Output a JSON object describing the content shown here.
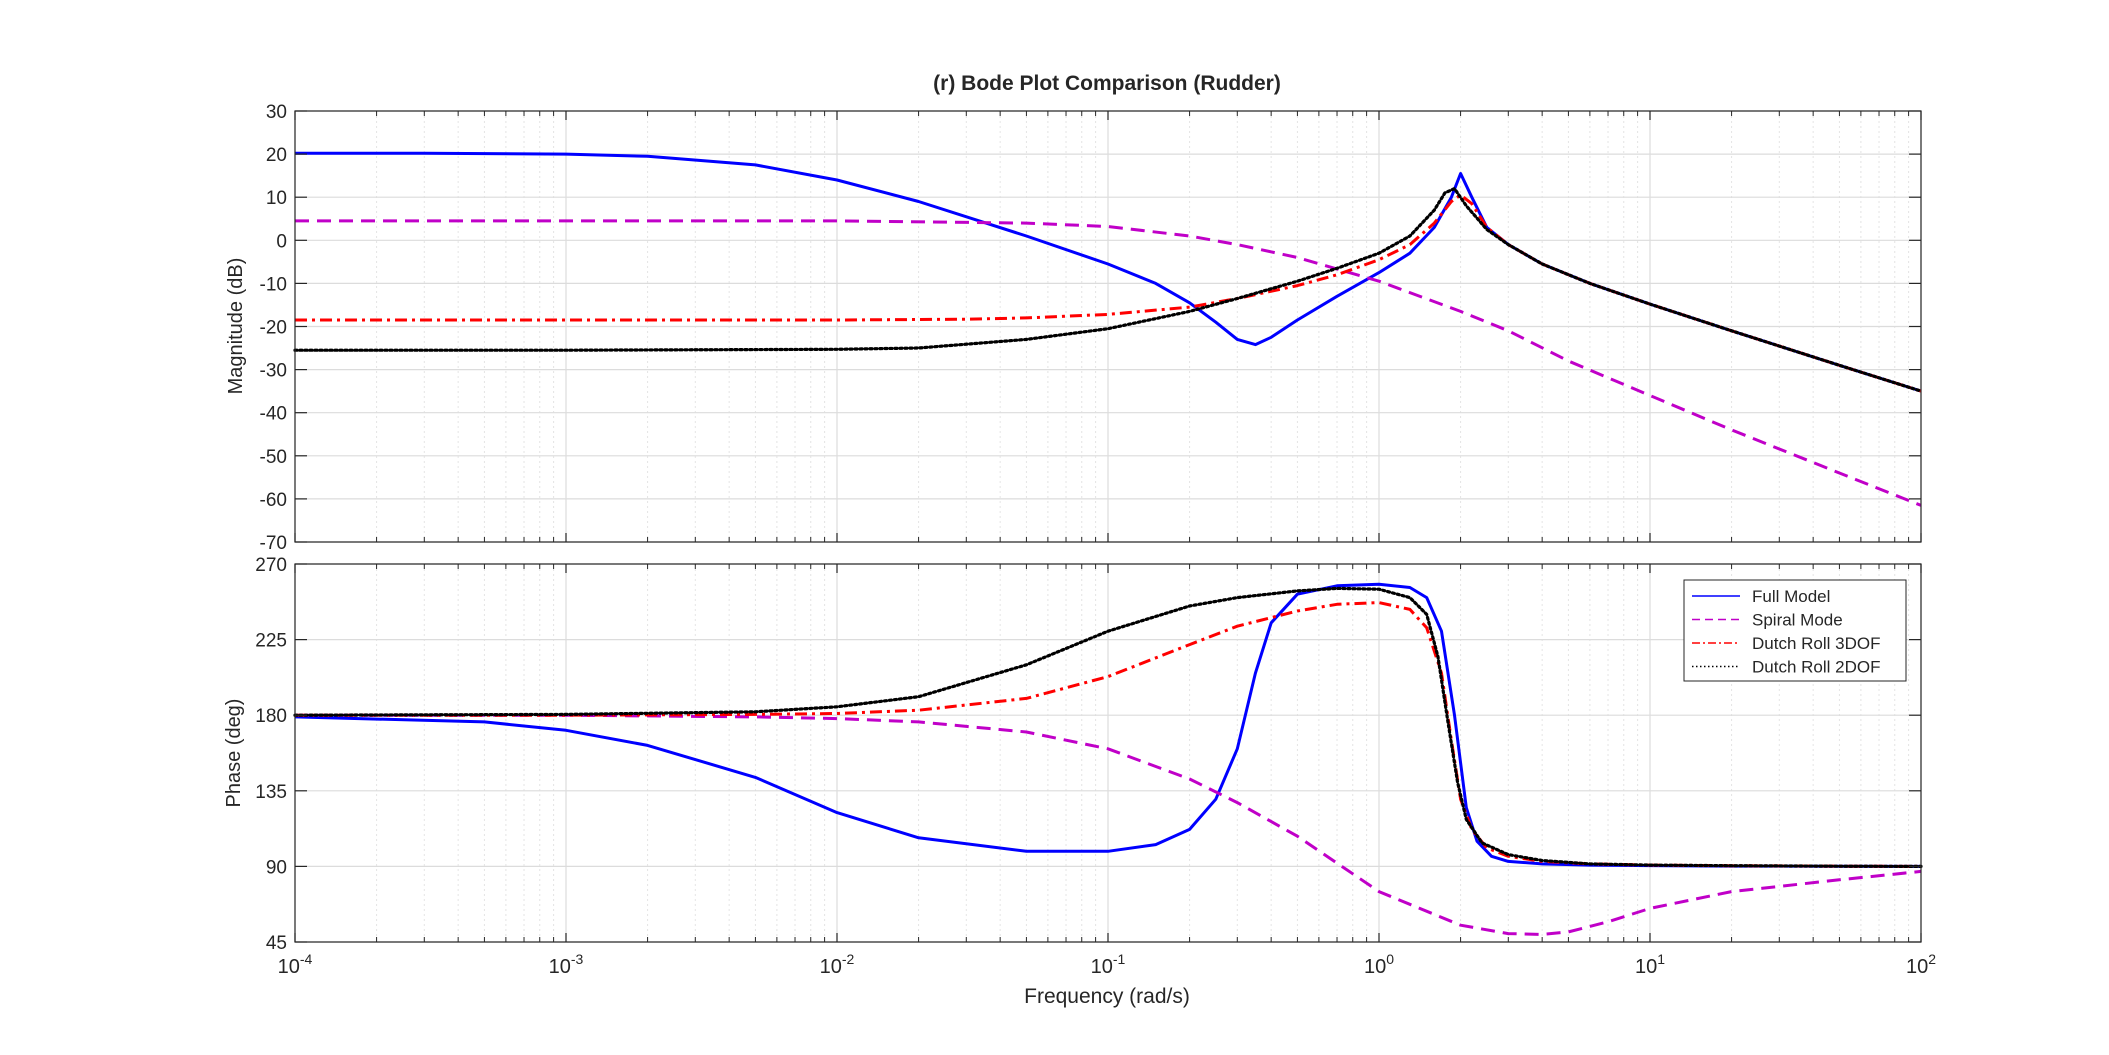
{
  "chart_data": {
    "type": "line",
    "title": "(r) Bode Plot Comparison (Rudder)",
    "xlabel": "Frequency  (rad/s)",
    "x_scale": "log",
    "xlim": [
      0.0001,
      100
    ],
    "x_ticks": [
      {
        "base": "10",
        "exp": "-4"
      },
      {
        "base": "10",
        "exp": "-3"
      },
      {
        "base": "10",
        "exp": "-2"
      },
      {
        "base": "10",
        "exp": "-1"
      },
      {
        "base": "10",
        "exp": "0"
      },
      {
        "base": "10",
        "exp": "1"
      },
      {
        "base": "10",
        "exp": "2"
      }
    ],
    "grid": true,
    "colors": {
      "full_model": "#0000ff",
      "spiral_mode": "#c000c8",
      "dutch_roll_3dof": "#ff0000",
      "dutch_roll_2dof": "#000000"
    },
    "legend": {
      "location": "top-right of phase plot",
      "entries": [
        {
          "label": "Full Model",
          "style": "solid",
          "color": "#0000ff"
        },
        {
          "label": "Spiral Mode",
          "style": "dashed",
          "color": "#c000c8"
        },
        {
          "label": "Dutch Roll 3DOF",
          "style": "dashdot",
          "color": "#ff0000"
        },
        {
          "label": "Dutch Roll 2DOF",
          "style": "dotted",
          "color": "#000000"
        }
      ]
    },
    "magnitude": {
      "ylabel": "Magnitude (dB)",
      "ylim": [
        -70,
        30
      ],
      "y_ticks": [
        "30",
        "20",
        "10",
        "0",
        "-10",
        "-20",
        "-30",
        "-40",
        "-50",
        "-60",
        "-70"
      ],
      "series": [
        {
          "name": "Full Model",
          "key": "full_model",
          "style": "solid",
          "x": [
            0.0001,
            0.0003,
            0.001,
            0.002,
            0.005,
            0.01,
            0.02,
            0.05,
            0.1,
            0.15,
            0.2,
            0.25,
            0.3,
            0.35,
            0.4,
            0.5,
            0.7,
            1.0,
            1.3,
            1.6,
            1.85,
            2.0,
            2.2,
            2.5,
            3,
            4,
            6,
            10,
            20,
            50,
            100
          ],
          "y": [
            20.2,
            20.2,
            20.0,
            19.5,
            17.5,
            14.0,
            9.0,
            1.0,
            -5.5,
            -10.0,
            -14.5,
            -19.0,
            -23.0,
            -24.2,
            -22.5,
            -18.5,
            -13.0,
            -7.5,
            -3.0,
            3.0,
            10.0,
            15.5,
            10.0,
            3.0,
            -1.0,
            -5.5,
            -10.0,
            -14.8,
            -21.0,
            -29.0,
            -35.0
          ]
        },
        {
          "name": "Spiral Mode",
          "key": "spiral_mode",
          "style": "dashed",
          "x": [
            0.0001,
            0.001,
            0.01,
            0.05,
            0.1,
            0.2,
            0.3,
            0.5,
            1,
            2,
            3,
            5,
            10,
            20,
            50,
            100
          ],
          "y": [
            4.5,
            4.5,
            4.5,
            4.0,
            3.2,
            1.0,
            -1.0,
            -4.0,
            -9.5,
            -16.5,
            -21.0,
            -28.0,
            -36.0,
            -44.0,
            -54.0,
            -61.5
          ]
        },
        {
          "name": "Dutch Roll 3DOF",
          "key": "dutch_roll_3dof",
          "style": "dashdot",
          "x": [
            0.0001,
            0.001,
            0.01,
            0.03,
            0.05,
            0.1,
            0.2,
            0.3,
            0.5,
            0.7,
            1.0,
            1.3,
            1.6,
            1.85,
            2.0,
            2.2,
            2.5,
            3,
            4,
            6,
            10,
            20,
            50,
            100
          ],
          "y": [
            -18.5,
            -18.5,
            -18.5,
            -18.3,
            -18.0,
            -17.2,
            -15.5,
            -13.5,
            -10.5,
            -8.0,
            -4.5,
            -1.0,
            4.0,
            9.0,
            10.5,
            8.5,
            3.0,
            -1.0,
            -5.5,
            -10.0,
            -14.8,
            -21.0,
            -29.0,
            -35.0
          ]
        },
        {
          "name": "Dutch Roll 2DOF",
          "key": "dutch_roll_2dof",
          "style": "dotted",
          "x": [
            0.0001,
            0.001,
            0.01,
            0.02,
            0.05,
            0.1,
            0.2,
            0.3,
            0.5,
            0.7,
            1.0,
            1.3,
            1.6,
            1.75,
            1.9,
            2.1,
            2.5,
            3,
            4,
            6,
            10,
            20,
            50,
            100
          ],
          "y": [
            -25.5,
            -25.5,
            -25.3,
            -25.0,
            -23.0,
            -20.5,
            -16.5,
            -13.5,
            -9.5,
            -6.5,
            -3.0,
            1.0,
            7.0,
            11.0,
            12.0,
            8.0,
            2.5,
            -1.0,
            -5.5,
            -10.0,
            -14.8,
            -21.0,
            -29.0,
            -35.0
          ]
        }
      ]
    },
    "phase": {
      "ylabel": "Phase (deg)",
      "ylim": [
        45,
        270
      ],
      "y_ticks": [
        "270",
        "225",
        "180",
        "135",
        "90",
        "45"
      ],
      "series": [
        {
          "name": "Full Model",
          "key": "full_model",
          "style": "solid",
          "x": [
            0.0001,
            0.0005,
            0.001,
            0.002,
            0.005,
            0.01,
            0.02,
            0.05,
            0.1,
            0.15,
            0.2,
            0.25,
            0.3,
            0.35,
            0.4,
            0.5,
            0.7,
            1.0,
            1.3,
            1.5,
            1.7,
            1.9,
            2.1,
            2.3,
            2.6,
            3,
            4,
            6,
            10,
            20,
            50,
            100
          ],
          "y": [
            179,
            176,
            171,
            162,
            143,
            122,
            107,
            99,
            99,
            103,
            112,
            130,
            160,
            205,
            235,
            252,
            257,
            258,
            256,
            250,
            230,
            180,
            125,
            105,
            96,
            93,
            91.5,
            90.8,
            90.5,
            90.2,
            90.1,
            90
          ]
        },
        {
          "name": "Spiral Mode",
          "key": "spiral_mode",
          "style": "dashed",
          "x": [
            0.0001,
            0.001,
            0.005,
            0.01,
            0.02,
            0.05,
            0.1,
            0.2,
            0.3,
            0.5,
            1,
            2,
            3,
            4,
            5,
            7,
            10,
            20,
            50,
            100
          ],
          "y": [
            180,
            180,
            179,
            178,
            176,
            170,
            160,
            142,
            128,
            108,
            75,
            55,
            50,
            49.5,
            51,
            57,
            65,
            75,
            82,
            87
          ]
        },
        {
          "name": "Dutch Roll 3DOF",
          "key": "dutch_roll_3dof",
          "style": "dashdot",
          "x": [
            0.0001,
            0.001,
            0.005,
            0.01,
            0.02,
            0.05,
            0.1,
            0.2,
            0.3,
            0.5,
            0.7,
            1.0,
            1.3,
            1.5,
            1.7,
            1.85,
            2.0,
            2.2,
            2.5,
            3,
            4,
            6,
            10,
            20,
            50,
            100
          ],
          "y": [
            180,
            180,
            180.5,
            181,
            183,
            190,
            203,
            222,
            233,
            242,
            246,
            247,
            243,
            232,
            205,
            165,
            130,
            112,
            101,
            96,
            93,
            91.5,
            90.8,
            90.4,
            90.1,
            90
          ]
        },
        {
          "name": "Dutch Roll 2DOF",
          "key": "dutch_roll_2dof",
          "style": "dotted",
          "x": [
            0.0001,
            0.001,
            0.005,
            0.01,
            0.02,
            0.05,
            0.1,
            0.2,
            0.3,
            0.5,
            0.7,
            1.0,
            1.3,
            1.5,
            1.65,
            1.8,
            1.95,
            2.1,
            2.4,
            3,
            4,
            6,
            10,
            20,
            50,
            100
          ],
          "y": [
            180,
            180.5,
            182,
            185,
            191,
            210,
            230,
            245,
            250,
            254,
            255.5,
            255,
            250,
            240,
            215,
            175,
            140,
            118,
            104,
            97,
            93.5,
            91.5,
            90.8,
            90.4,
            90.1,
            90
          ]
        }
      ]
    }
  }
}
